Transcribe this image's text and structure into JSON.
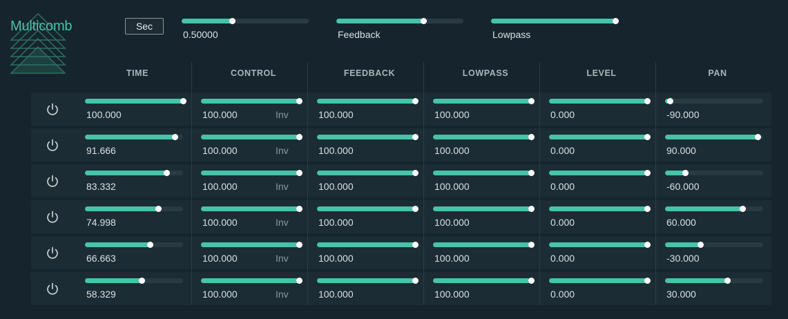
{
  "app": {
    "title": "Multicomb"
  },
  "header": {
    "unit_button": "Sec",
    "time_value": "0.50000",
    "time_level": 0.4,
    "feedback_label": "Feedback",
    "feedback_level": 0.69,
    "lowpass_label": "Lowpass",
    "lowpass_level": 1.0
  },
  "columns": [
    "TIME",
    "CONTROL",
    "FEEDBACK",
    "LOWPASS",
    "LEVEL",
    "PAN"
  ],
  "inv_label": "Inv",
  "colors": {
    "accent": "#45c4a9",
    "background": "#16252d",
    "row": "#1c2c34"
  },
  "rows": [
    {
      "time": "100.000",
      "time_level": 1.0,
      "control": "100.000",
      "feedback": "100.000",
      "lowpass": "100.000",
      "level": "0.000",
      "pan": "-90.000",
      "pan_level": 0.05
    },
    {
      "time": "91.666",
      "time_level": 0.917,
      "control": "100.000",
      "feedback": "100.000",
      "lowpass": "100.000",
      "level": "0.000",
      "pan": "90.000",
      "pan_level": 0.95
    },
    {
      "time": "83.332",
      "time_level": 0.833,
      "control": "100.000",
      "feedback": "100.000",
      "lowpass": "100.000",
      "level": "0.000",
      "pan": "-60.000",
      "pan_level": 0.21
    },
    {
      "time": "74.998",
      "time_level": 0.75,
      "control": "100.000",
      "feedback": "100.000",
      "lowpass": "100.000",
      "level": "0.000",
      "pan": "60.000",
      "pan_level": 0.79
    },
    {
      "time": "66.663",
      "time_level": 0.667,
      "control": "100.000",
      "feedback": "100.000",
      "lowpass": "100.000",
      "level": "0.000",
      "pan": "-30.000",
      "pan_level": 0.36
    },
    {
      "time": "58.329",
      "time_level": 0.583,
      "control": "100.000",
      "feedback": "100.000",
      "lowpass": "100.000",
      "level": "0.000",
      "pan": "30.000",
      "pan_level": 0.64
    }
  ]
}
